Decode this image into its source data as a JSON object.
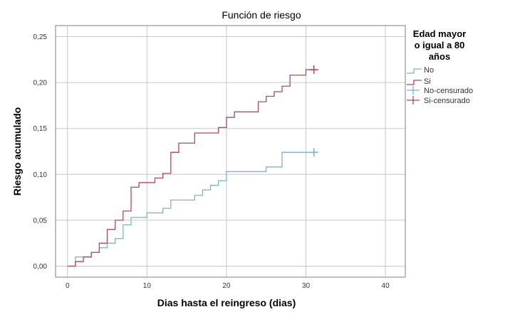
{
  "chart_data": {
    "type": "line",
    "title": "Función de riesgo",
    "xlabel": "Dias hasta el reingreso (dias)",
    "ylabel": "Riesgo acumulado",
    "xlim": [
      -1.5,
      42.5
    ],
    "ylim": [
      -0.012,
      0.262
    ],
    "x_ticks": [
      0,
      10,
      20,
      30,
      40
    ],
    "y_ticks": [
      0,
      0.05,
      0.1,
      0.15,
      0.2,
      0.25
    ],
    "x_tick_labels": [
      "0",
      "10",
      "20",
      "30",
      "40"
    ],
    "y_tick_labels": [
      "0,00",
      "0,05",
      "0,10",
      "0,15",
      "0,20",
      "0,25"
    ],
    "grid": true,
    "legend_position": "right",
    "legend_title": [
      "Edad mayor",
      "o igual a 80",
      "años"
    ],
    "series": [
      {
        "name": "No",
        "color": "#7fb0d2",
        "step": true,
        "x": [
          0,
          1,
          2,
          3,
          4,
          5,
          6,
          7,
          8,
          9,
          10,
          11,
          12,
          13,
          14,
          15,
          16,
          17,
          18,
          19,
          20,
          21,
          22,
          23,
          24,
          25,
          26,
          27,
          28,
          29,
          30,
          31
        ],
        "y": [
          0,
          0.01,
          0.01,
          0.015,
          0.02,
          0.025,
          0.03,
          0.045,
          0.053,
          0.053,
          0.058,
          0.058,
          0.063,
          0.072,
          0.072,
          0.072,
          0.077,
          0.083,
          0.088,
          0.093,
          0.103,
          0.103,
          0.103,
          0.103,
          0.103,
          0.108,
          0.108,
          0.124,
          0.124,
          0.124,
          0.124,
          0.124
        ]
      },
      {
        "name": "Si",
        "color": "#b0475e",
        "step": true,
        "x": [
          0,
          1,
          2,
          3,
          4,
          5,
          6,
          7,
          8,
          9,
          10,
          11,
          12,
          13,
          14,
          15,
          16,
          17,
          18,
          19,
          20,
          21,
          22,
          23,
          24,
          25,
          26,
          27,
          28,
          29,
          30,
          31
        ],
        "y": [
          0,
          0.005,
          0.01,
          0.015,
          0.025,
          0.04,
          0.05,
          0.06,
          0.086,
          0.091,
          0.091,
          0.096,
          0.101,
          0.124,
          0.134,
          0.134,
          0.145,
          0.145,
          0.145,
          0.151,
          0.162,
          0.168,
          0.168,
          0.168,
          0.179,
          0.185,
          0.19,
          0.196,
          0.208,
          0.208,
          0.214,
          0.214
        ]
      }
    ],
    "censored": [
      {
        "name": "No-censurado",
        "color": "#7fb0d2",
        "x": 31,
        "y": 0.124
      },
      {
        "name": "Si-censurado",
        "color": "#b0475e",
        "x": 31,
        "y": 0.214
      }
    ]
  }
}
